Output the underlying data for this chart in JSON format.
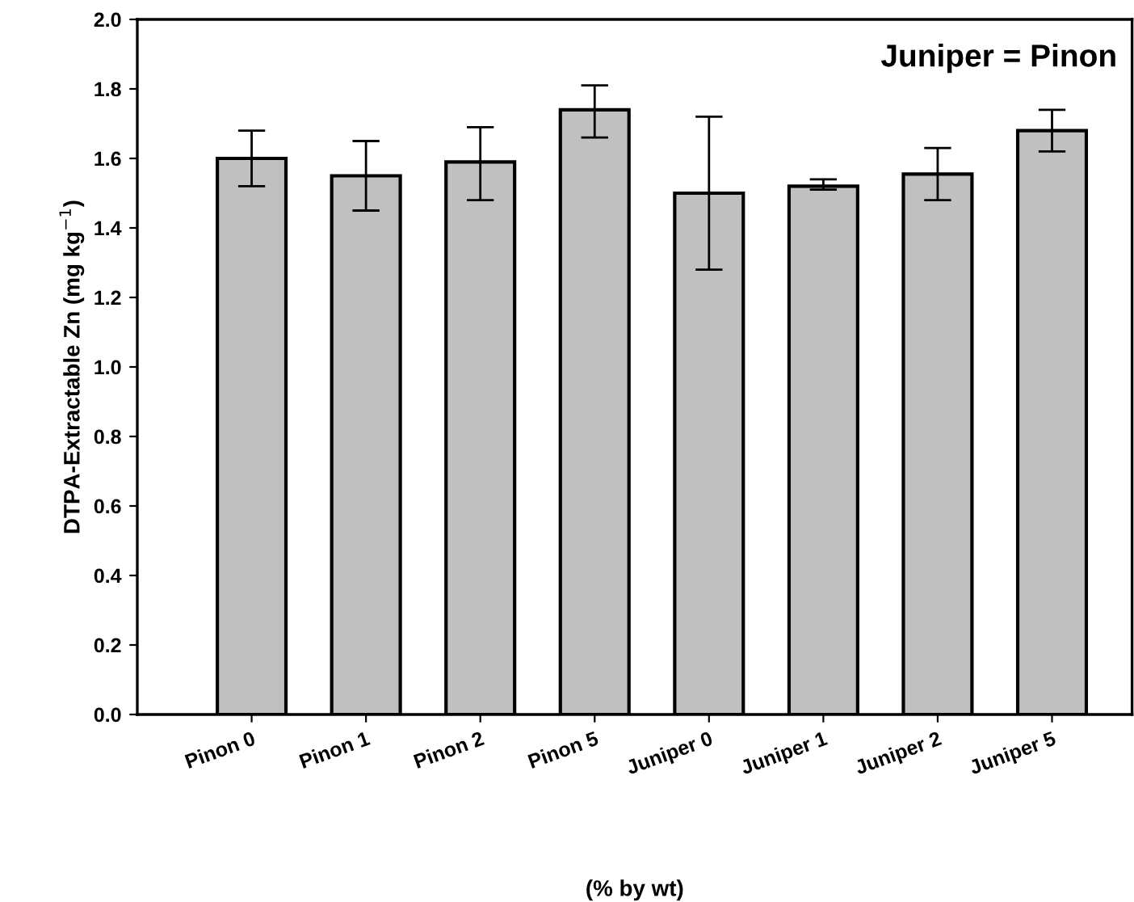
{
  "chart_data": {
    "type": "bar",
    "xlabel": "(% by wt)",
    "ylabel": "DTPA-Extractable Zn (mg kg$^{−1}$)",
    "categories": [
      "Pinon 0",
      "Pinon 1",
      "Pinon 2",
      "Pinon 5",
      "Juniper 0",
      "Juniper 1",
      "Juniper 2",
      "Juniper 5"
    ],
    "values": [
      1.6,
      1.55,
      1.59,
      1.74,
      1.5,
      1.52,
      1.555,
      1.68
    ],
    "errors": [
      [
        1.52,
        1.68
      ],
      [
        1.45,
        1.65
      ],
      [
        1.48,
        1.69
      ],
      [
        1.66,
        1.81
      ],
      [
        1.28,
        1.72
      ],
      [
        1.51,
        1.54
      ],
      [
        1.48,
        1.63
      ],
      [
        1.62,
        1.74
      ]
    ],
    "color": "#c0c0c0",
    "ylim": [
      0,
      2.0
    ],
    "yticks": [
      {
        "value": 0,
        "label": "0.0"
      },
      {
        "value": 0.2,
        "label": "0.2"
      },
      {
        "value": 0.4,
        "label": "0.4"
      },
      {
        "value": 0.6,
        "label": "0.6"
      },
      {
        "value": 0.8,
        "label": "0.8"
      },
      {
        "value": 1,
        "label": "1.0"
      },
      {
        "value": 1.2,
        "label": "1.2"
      },
      {
        "value": 1.4,
        "label": "1.4"
      },
      {
        "value": 1.6,
        "label": "1.6"
      },
      {
        "value": 1.8,
        "label": "1.8"
      },
      {
        "value": 2,
        "label": "2.0"
      }
    ],
    "annotations": [
      "Juniper = Pinon"
    ],
    "grid": false,
    "legend": false
  }
}
